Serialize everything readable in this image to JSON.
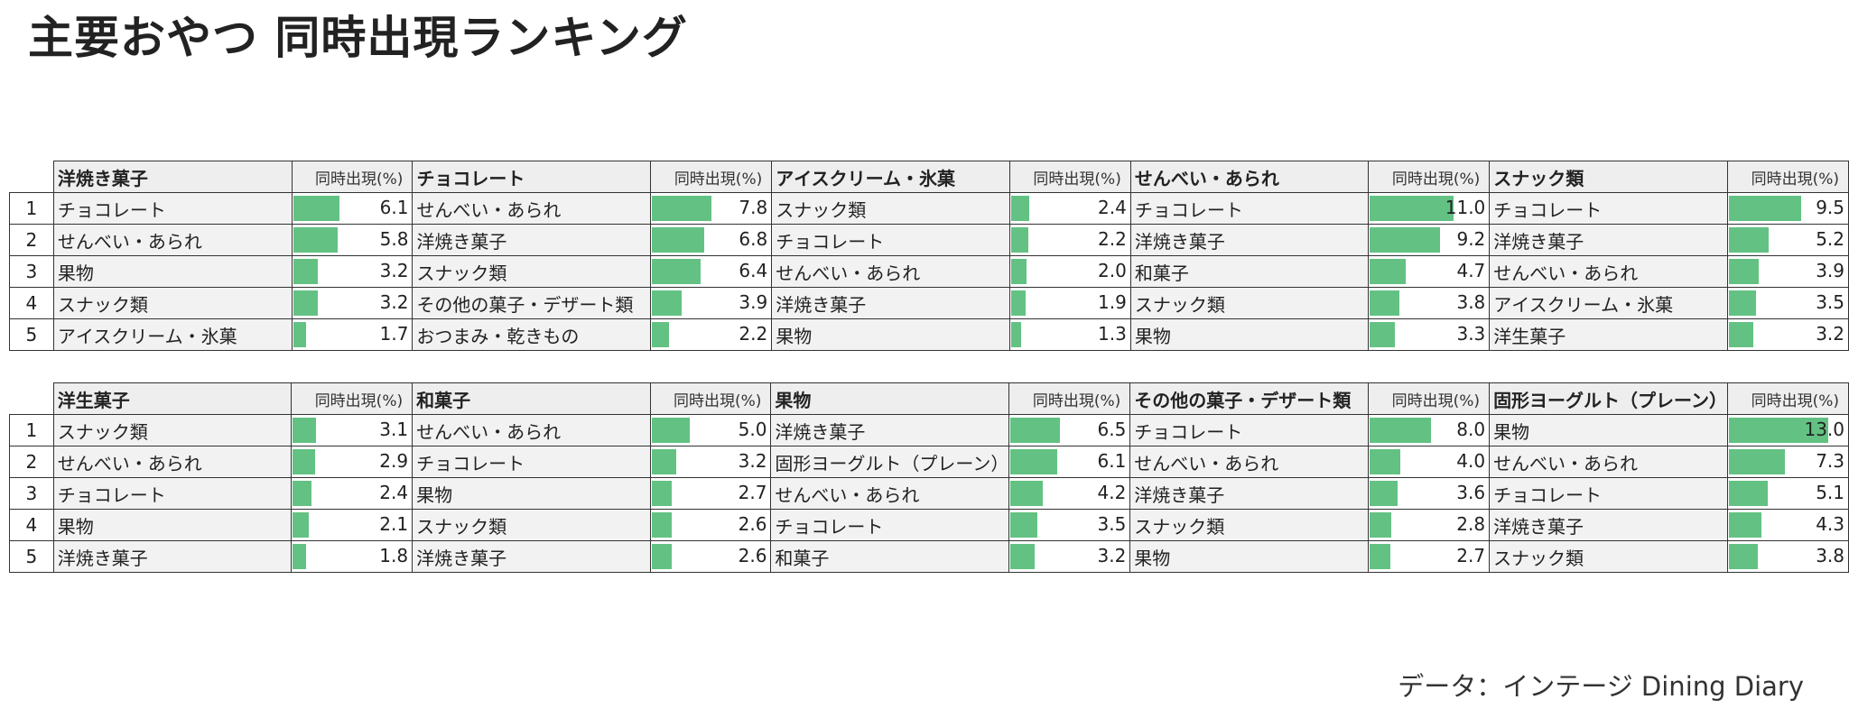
{
  "title": "主要おやつ 同時出現ランキング",
  "source": "データ：インテージ Dining Diary",
  "colors": {
    "bar": "#63c283",
    "header_bg": "#eeeeee",
    "name_bg": "#f2f2f2"
  },
  "chart_data": {
    "type": "table",
    "value_label": "同時出現(%)",
    "bar_max": 13.0,
    "ranks": [
      "1",
      "2",
      "3",
      "4",
      "5"
    ],
    "rows_of_groups": [
      [
        {
          "category": "洋焼き菓子",
          "value_label": "同時出現(%)",
          "items": [
            {
              "name": "チョコレート",
              "value": 6.1
            },
            {
              "name": "せんべい・あられ",
              "value": 5.8
            },
            {
              "name": "果物",
              "value": 3.2
            },
            {
              "name": "スナック類",
              "value": 3.2
            },
            {
              "name": "アイスクリーム・氷菓",
              "value": 1.7
            }
          ]
        },
        {
          "category": "チョコレート",
          "value_label": "同時出現(%)",
          "items": [
            {
              "name": "せんべい・あられ",
              "value": 7.8
            },
            {
              "name": "洋焼き菓子",
              "value": 6.8
            },
            {
              "name": "スナック類",
              "value": 6.4
            },
            {
              "name": "その他の菓子・デザート類",
              "value": 3.9
            },
            {
              "name": "おつまみ・乾きもの",
              "value": 2.2
            }
          ]
        },
        {
          "category": "アイスクリーム・氷菓",
          "value_label": "同時出現(%)",
          "items": [
            {
              "name": "スナック類",
              "value": 2.4
            },
            {
              "name": "チョコレート",
              "value": 2.2
            },
            {
              "name": "せんべい・あられ",
              "value": 2.0
            },
            {
              "name": "洋焼き菓子",
              "value": 1.9
            },
            {
              "name": "果物",
              "value": 1.3
            }
          ]
        },
        {
          "category": "せんべい・あられ",
          "value_label": "同時出現(%)",
          "items": [
            {
              "name": "チョコレート",
              "value": 11.0
            },
            {
              "name": "洋焼き菓子",
              "value": 9.2
            },
            {
              "name": "和菓子",
              "value": 4.7
            },
            {
              "name": "スナック類",
              "value": 3.8
            },
            {
              "name": "果物",
              "value": 3.3
            }
          ]
        },
        {
          "category": "スナック類",
          "value_label": "同時出現(%)",
          "items": [
            {
              "name": "チョコレート",
              "value": 9.5
            },
            {
              "name": "洋焼き菓子",
              "value": 5.2
            },
            {
              "name": "せんべい・あられ",
              "value": 3.9
            },
            {
              "name": "アイスクリーム・氷菓",
              "value": 3.5
            },
            {
              "name": "洋生菓子",
              "value": 3.2
            }
          ]
        }
      ],
      [
        {
          "category": "洋生菓子",
          "value_label": "同時出現(%)",
          "items": [
            {
              "name": "スナック類",
              "value": 3.1
            },
            {
              "name": "せんべい・あられ",
              "value": 2.9
            },
            {
              "name": "チョコレート",
              "value": 2.4
            },
            {
              "name": "果物",
              "value": 2.1
            },
            {
              "name": "洋焼き菓子",
              "value": 1.8
            }
          ]
        },
        {
          "category": "和菓子",
          "value_label": "同時出現(%)",
          "items": [
            {
              "name": "せんべい・あられ",
              "value": 5.0
            },
            {
              "name": "チョコレート",
              "value": 3.2
            },
            {
              "name": "果物",
              "value": 2.7
            },
            {
              "name": "スナック類",
              "value": 2.6
            },
            {
              "name": "洋焼き菓子",
              "value": 2.6
            }
          ]
        },
        {
          "category": "果物",
          "value_label": "同時出現(%)",
          "items": [
            {
              "name": "洋焼き菓子",
              "value": 6.5
            },
            {
              "name": "固形ヨーグルト（プレーン）",
              "value": 6.1
            },
            {
              "name": "せんべい・あられ",
              "value": 4.2
            },
            {
              "name": "チョコレート",
              "value": 3.5
            },
            {
              "name": "和菓子",
              "value": 3.2
            }
          ]
        },
        {
          "category": "その他の菓子・デザート類",
          "value_label": "同時出現(%)",
          "items": [
            {
              "name": "チョコレート",
              "value": 8.0
            },
            {
              "name": "せんべい・あられ",
              "value": 4.0
            },
            {
              "name": "洋焼き菓子",
              "value": 3.6
            },
            {
              "name": "スナック類",
              "value": 2.8
            },
            {
              "name": "果物",
              "value": 2.7
            }
          ]
        },
        {
          "category": "固形ヨーグルト（プレーン）",
          "value_label": "同時出現(%)",
          "items": [
            {
              "name": "果物",
              "value": 13.0
            },
            {
              "name": "せんべい・あられ",
              "value": 7.3
            },
            {
              "name": "チョコレート",
              "value": 5.1
            },
            {
              "name": "洋焼き菓子",
              "value": 4.3
            },
            {
              "name": "スナック類",
              "value": 3.8
            }
          ]
        }
      ]
    ]
  }
}
